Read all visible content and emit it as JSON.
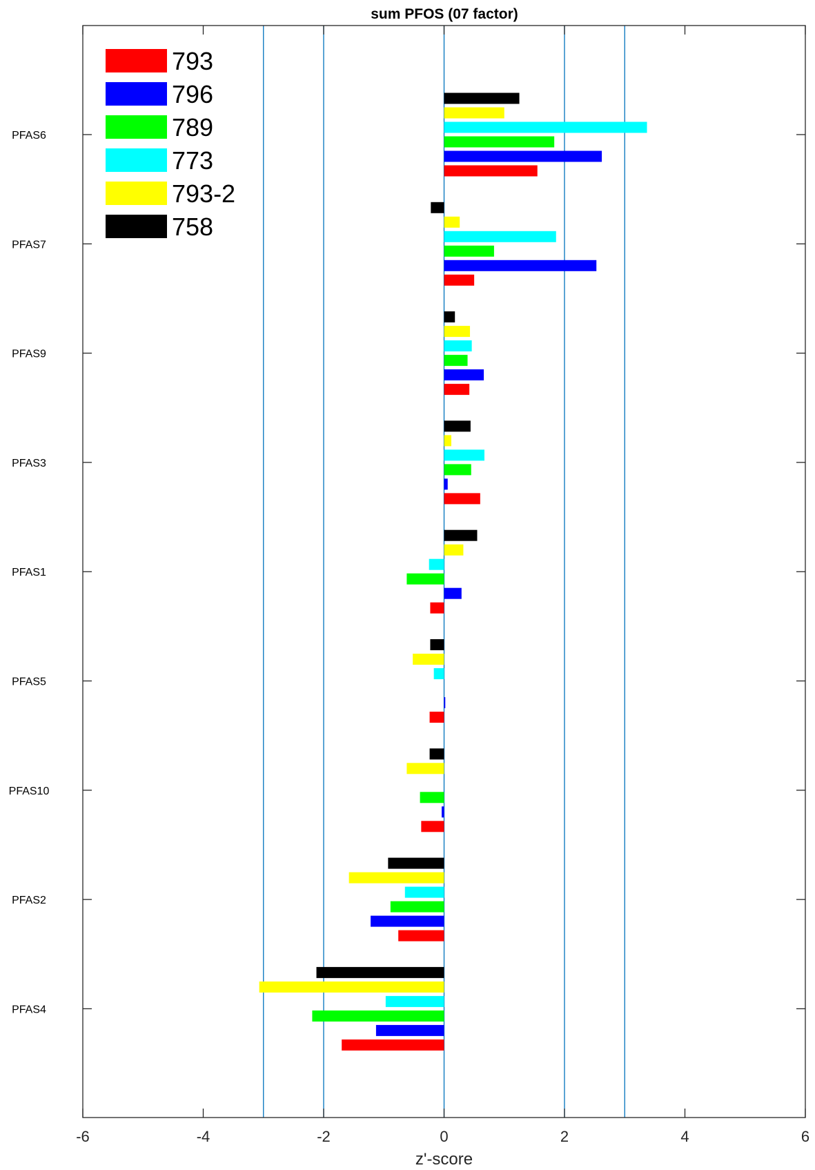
{
  "chart_data": {
    "type": "bar",
    "orientation": "horizontal",
    "title": "sum PFOS (07 factor)",
    "xlabel": "z'-score",
    "ylabel": "",
    "xlim": [
      -6,
      6
    ],
    "xticks": [
      -6,
      -4,
      -2,
      0,
      2,
      4,
      6
    ],
    "reference_lines": [
      -3,
      -2,
      0,
      2,
      3
    ],
    "reference_line_color": "#0072BD",
    "legend_position": "top-left",
    "categories": [
      "PFAS6",
      "PFAS7",
      "PFAS9",
      "PFAS3",
      "PFAS1",
      "PFAS5",
      "PFAS10",
      "PFAS2",
      "PFAS4"
    ],
    "series": [
      {
        "name": "793",
        "color": "#ff0000",
        "values": [
          1.55,
          0.5,
          0.42,
          0.6,
          -0.23,
          -0.24,
          -0.38,
          -0.76,
          -1.7
        ]
      },
      {
        "name": "796",
        "color": "#0000ff",
        "values": [
          2.62,
          2.53,
          0.66,
          0.06,
          0.29,
          0.02,
          -0.04,
          -1.22,
          -1.13
        ]
      },
      {
        "name": "789",
        "color": "#00ff00",
        "values": [
          1.83,
          0.83,
          0.39,
          0.45,
          -0.62,
          0.0,
          -0.4,
          -0.89,
          -2.19
        ]
      },
      {
        "name": "773",
        "color": "#00ffff",
        "values": [
          3.37,
          1.86,
          0.46,
          0.67,
          -0.25,
          -0.17,
          0.0,
          -0.65,
          -0.97
        ]
      },
      {
        "name": "793-2",
        "color": "#ffff00",
        "values": [
          1.0,
          0.26,
          0.43,
          0.12,
          0.32,
          -0.52,
          -0.62,
          -1.58,
          -3.07
        ]
      },
      {
        "name": "758",
        "color": "#000000",
        "values": [
          1.25,
          -0.22,
          0.18,
          0.44,
          0.55,
          -0.23,
          -0.24,
          -0.93,
          -2.12
        ]
      }
    ]
  }
}
